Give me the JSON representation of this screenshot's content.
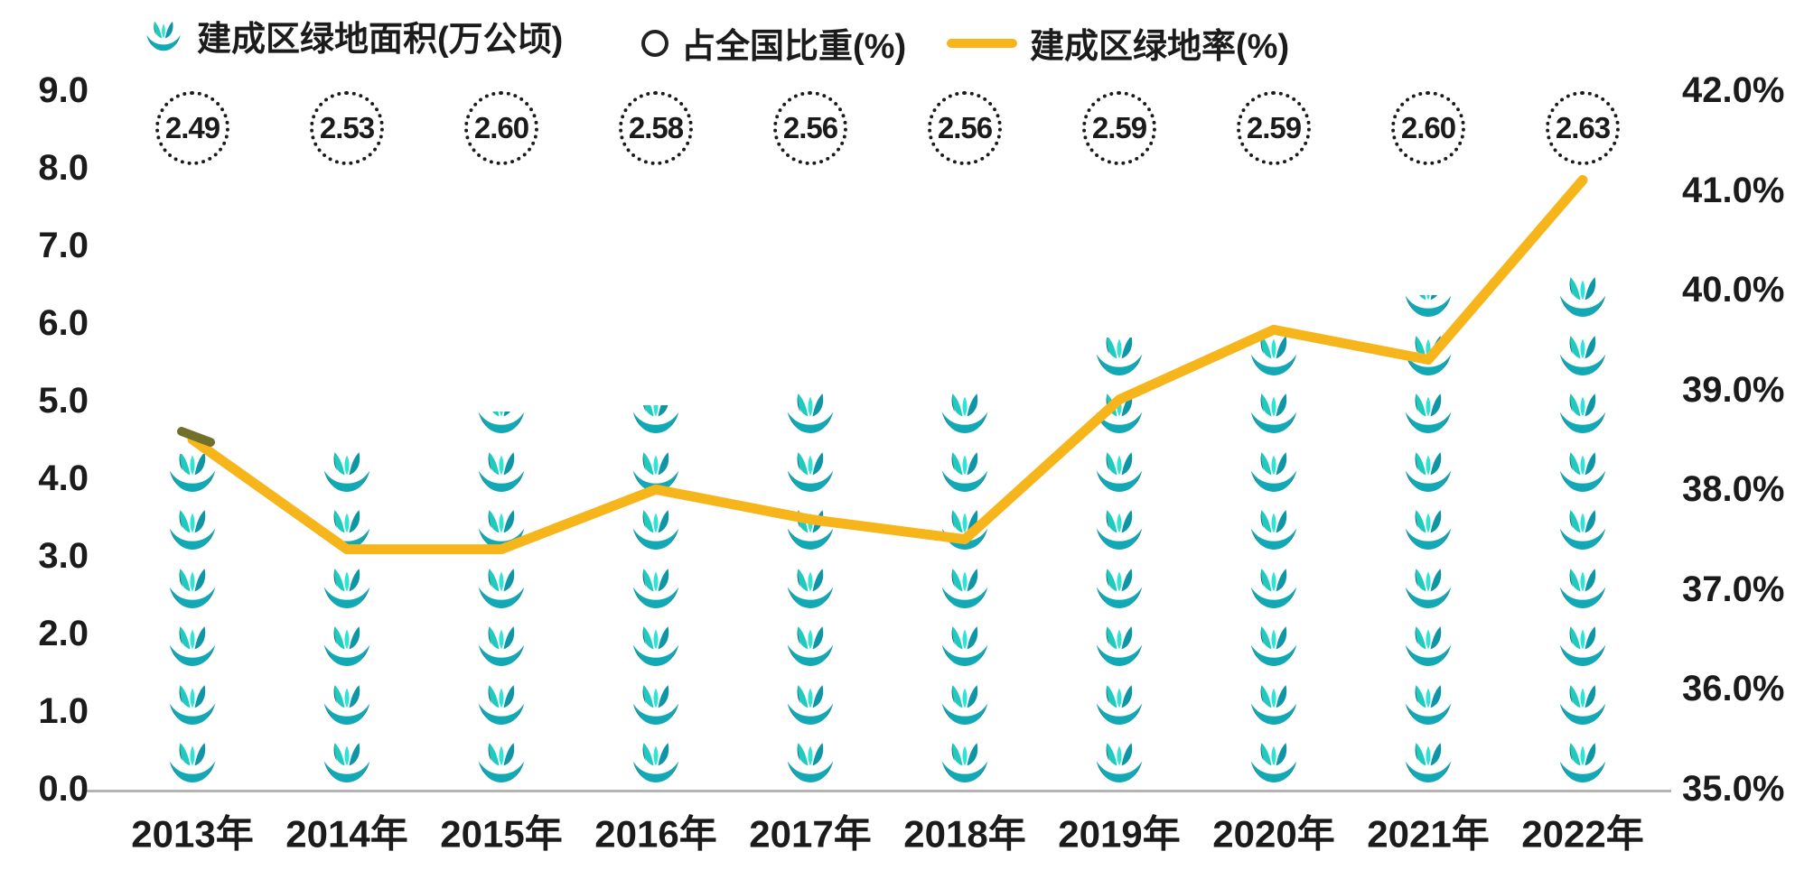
{
  "legend": {
    "items": [
      {
        "label": "建成区绿地面积(万公顷)",
        "marker": "plant-icon"
      },
      {
        "label": "占全国比重(%)",
        "marker": "dotted-circle"
      },
      {
        "label": "建成区绿地率(%)",
        "marker": "yellow-line"
      }
    ]
  },
  "chart_data": {
    "type": "combo",
    "subtype": "pictogram-bar + labeled-points + line, dual y-axis",
    "categories": [
      "2013年",
      "2014年",
      "2015年",
      "2016年",
      "2017年",
      "2018年",
      "2019年",
      "2020年",
      "2021年",
      "2022年"
    ],
    "series": [
      {
        "name": "建成区绿地面积(万公顷)",
        "type": "pictogram-bar",
        "axis": "left",
        "icon": "plant-icon",
        "icon_unit_value": 0.75,
        "values": [
          4.4,
          4.5,
          4.9,
          5.0,
          5.2,
          5.2,
          5.9,
          6.0,
          6.4,
          6.7
        ]
      },
      {
        "name": "占全国比重(%)",
        "type": "labeled-points",
        "axis": "none",
        "labels": [
          "2.49",
          "2.53",
          "2.60",
          "2.58",
          "2.56",
          "2.56",
          "2.59",
          "2.59",
          "2.60",
          "2.63"
        ]
      },
      {
        "name": "建成区绿地率(%)",
        "type": "line",
        "axis": "right",
        "values": [
          38.5,
          37.4,
          37.4,
          38.0,
          37.7,
          37.5,
          38.9,
          39.6,
          39.3,
          41.1
        ]
      }
    ],
    "left_axis": {
      "ticks": [
        "9.0",
        "8.0",
        "7.0",
        "6.0",
        "5.0",
        "4.0",
        "3.0",
        "2.0",
        "1.0",
        "0.0"
      ],
      "min": 0,
      "max": 9
    },
    "right_axis": {
      "ticks": [
        "42.0%",
        "41.0%",
        "40.0%",
        "39.0%",
        "38.0%",
        "37.0%",
        "36.0%",
        "35.0%"
      ],
      "min": 35,
      "max": 42
    },
    "legend_position": "top",
    "grid": false,
    "colors": {
      "icon_bright": "#2FE3D5",
      "icon_mid": "#1FCABF",
      "icon_deep": "#0E96A6",
      "icon_leaf": "#12A9B4",
      "icon_dark_accent": "#175061",
      "line": "#F6B61B",
      "line_start_cap": "#6F702C",
      "badge_border": "#1b1b1b",
      "text": "#1b1b1b",
      "baseline": "#b5b5b5"
    }
  }
}
